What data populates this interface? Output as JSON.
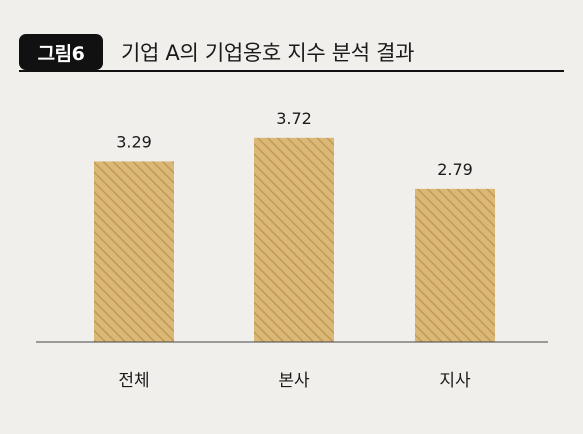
{
  "figure": {
    "badge": "그림6",
    "title": "기업 A의 기업옹호 지수 분석 결과"
  },
  "colors": {
    "background": "#f1efec",
    "bar_fill": "#d9b878",
    "bar_hatch": "#c49a52",
    "axis": "#444444",
    "badge": "#111111"
  },
  "chart_data": {
    "type": "bar",
    "categories": [
      "전체",
      "본사",
      "지사"
    ],
    "values": [
      3.29,
      3.72,
      2.79
    ],
    "value_labels": [
      "3.29",
      "3.72",
      "2.79"
    ],
    "title": "기업 A의 기업옹호 지수 분석 결과",
    "xlabel": "",
    "ylabel": "",
    "ylim": [
      0,
      4.5
    ],
    "grid": false,
    "legend": "none"
  }
}
